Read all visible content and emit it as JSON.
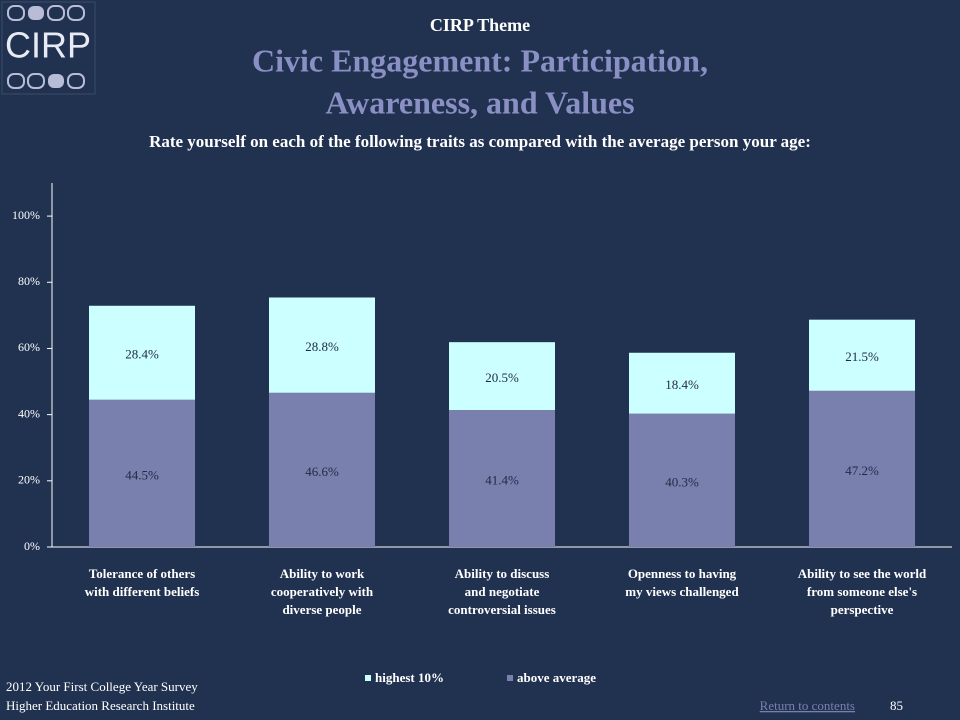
{
  "logo": {
    "text": "CIRP"
  },
  "header": {
    "kicker": "CIRP Theme",
    "title_lines": [
      "Civic Engagement: Participation,",
      "Awareness, and Values"
    ]
  },
  "chart_data": {
    "type": "stacked_bar",
    "subtitle": "Rate yourself on each of the following traits as compared with the average person your age:",
    "categories": [
      "Tolerance of others\nwith different beliefs",
      "Ability to work\ncooperatively with\ndiverse people",
      "Ability to discuss\nand negotiate\ncontroversial issues",
      "Openness to having\nmy views challenged",
      "Ability to see the world\nfrom someone else's\nperspective"
    ],
    "series": [
      {
        "name": "highest 10%",
        "color": "#ccffff",
        "values": [
          28.4,
          28.8,
          20.5,
          18.4,
          21.5
        ],
        "value_labels": [
          "28.4%",
          "28.8%",
          "20.5%",
          "18.4%",
          "21.5%"
        ]
      },
      {
        "name": "above average",
        "color": "#7a80ae",
        "values": [
          44.5,
          46.6,
          41.4,
          40.3,
          47.2
        ],
        "value_labels": [
          "44.5%",
          "46.6%",
          "41.4%",
          "40.3%",
          "47.2%"
        ]
      }
    ],
    "ylim": [
      0,
      110
    ],
    "yticks": [
      {
        "value": 0,
        "label": "0%"
      },
      {
        "value": 20,
        "label": "20%"
      },
      {
        "value": 40,
        "label": "40%"
      },
      {
        "value": 60,
        "label": "60%"
      },
      {
        "value": 80,
        "label": "80%"
      },
      {
        "value": 100,
        "label": "100%"
      }
    ],
    "legend": "bottom",
    "grid": false
  },
  "footer": {
    "survey": "2012 Your First College Year Survey",
    "institute": "Higher Education Research Institute",
    "link": "Return to contents",
    "page": "85"
  }
}
